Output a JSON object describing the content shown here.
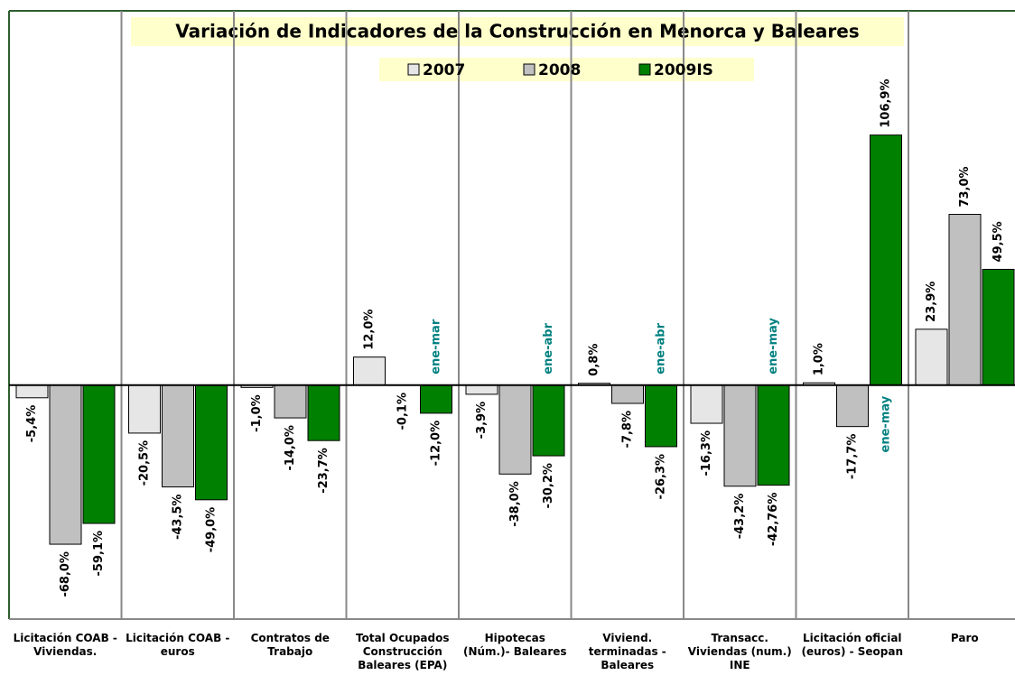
{
  "chart_data": {
    "type": "bar",
    "title": "Variación de Indicadores de la Construcción en Menorca y Baleares",
    "categories": [
      "Licitación COAB - Viviendas.",
      "Licitación COAB - euros",
      "Contratos de Trabajo",
      "Total Ocupados Construcción Baleares (EPA)",
      "Hipotecas (Núm.)- Baleares",
      "Viviend. terminadas - Baleares",
      "Transacc. Viviendas (num.) INE",
      "Licitación oficial (euros) - Seopan",
      "Paro"
    ],
    "series": [
      {
        "name": "2007",
        "color": "#e6e6e6",
        "values": [
          -5.4,
          -20.5,
          -1.0,
          12.0,
          -3.9,
          0.8,
          -16.3,
          1.0,
          23.9
        ],
        "value_labels": [
          "-5,4%",
          "-20,5%",
          "-1,0%",
          "12,0%",
          "-3,9%",
          "0,8%",
          "-16,3%",
          "1,0%",
          "23,9%"
        ]
      },
      {
        "name": "2008",
        "color": "#c0c0c0",
        "values": [
          -68.0,
          -43.5,
          -14.0,
          -0.1,
          -38.0,
          -7.8,
          -43.2,
          -17.7,
          73.0
        ],
        "value_labels": [
          "-68,0%",
          "-43,5%",
          "-14,0%",
          "-0,1%",
          "-38,0%",
          "-7,8%",
          "-43,2%",
          "-17,7%",
          "73,0%"
        ]
      },
      {
        "name": "2009IS",
        "color": "#008000",
        "values": [
          -59.1,
          -49.0,
          -23.7,
          -12.0,
          -30.2,
          -26.3,
          -42.76,
          106.9,
          49.5
        ],
        "value_labels": [
          "-59,1%",
          "-49,0%",
          "-23,7%",
          "-12,0%",
          "-30,2%",
          "-26,3%",
          "-42,76%",
          "106,9%",
          "49,5%"
        ]
      }
    ],
    "annotations": [
      {
        "text": "ene-mar",
        "category": "Total Ocupados Construcción Baleares (EPA)"
      },
      {
        "text": "ene-abr",
        "category": "Hipotecas (Núm.)- Baleares"
      },
      {
        "text": "ene-abr",
        "category": "Viviend. terminadas - Baleares"
      },
      {
        "text": "ene-may",
        "category": "Transacc. Viviendas (num.) INE"
      },
      {
        "text": "ene-may",
        "category": "Licitación oficial (euros) - Seopan"
      }
    ],
    "ylim": [
      -100,
      160
    ]
  }
}
